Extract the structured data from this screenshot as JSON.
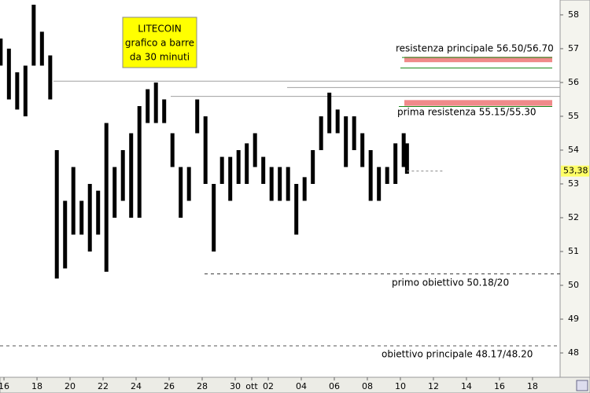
{
  "chart_data": {
    "type": "range-bar",
    "title": [
      "LITECOIN",
      "grafico a barre",
      "da 30 minuti"
    ],
    "x": [
      15.8,
      16.3,
      16.8,
      17.3,
      17.8,
      18.3,
      18.8,
      19.2,
      19.7,
      20.2,
      20.7,
      21.2,
      21.7,
      22.2,
      22.7,
      23.2,
      23.7,
      24.2,
      24.7,
      25.2,
      25.7,
      26.2,
      26.7,
      27.2,
      27.7,
      28.2,
      28.7,
      29.2,
      29.7,
      30.2,
      30.7,
      31.2,
      31.7,
      32.2,
      32.7,
      33.2,
      33.7,
      34.2,
      34.7,
      35.2,
      35.7,
      36.2,
      36.7,
      37.2,
      37.7,
      38.2,
      38.7,
      39.2,
      39.7,
      40.2,
      40.4
    ],
    "high": [
      57.3,
      57,
      56.3,
      56.5,
      58.3,
      57.5,
      56.8,
      54,
      52.5,
      53.5,
      52.5,
      53,
      52.8,
      54.8,
      53.5,
      54,
      54.5,
      55.3,
      55.8,
      56,
      55.5,
      54.5,
      53.5,
      53.5,
      55.5,
      55,
      53,
      53.8,
      53.8,
      54,
      54.2,
      54.5,
      53.8,
      53.5,
      53.5,
      53.5,
      53,
      53.2,
      54,
      55,
      55.7,
      55.2,
      55,
      55,
      54.5,
      54,
      53.5,
      53.5,
      54.2,
      54.5,
      54.2
    ],
    "low": [
      56.5,
      55.5,
      55.2,
      55,
      56.5,
      56.5,
      55.5,
      50.2,
      50.5,
      51.5,
      51.5,
      51,
      51.5,
      50.4,
      52,
      52.5,
      52,
      52,
      54.8,
      54.8,
      54.8,
      53.5,
      52,
      52.5,
      54.5,
      53,
      51,
      53,
      52.5,
      53,
      53,
      53.5,
      53,
      52.5,
      52.5,
      52.5,
      51.5,
      52.5,
      53,
      54,
      54.5,
      54.5,
      53.5,
      54,
      53.5,
      52.5,
      52.5,
      53,
      53,
      53.5,
      53.3
    ],
    "color": "#000000",
    "last": 53.38,
    "last_label": "53,38",
    "levels": [
      {
        "value": 56.04,
        "color": "#a0a0a0"
      },
      {
        "value": 55.85,
        "color": "#a0a0a0"
      },
      {
        "value": 55.59,
        "color": "#a0a0a0"
      },
      {
        "value": 56.74,
        "color": "#1a8a1a"
      },
      {
        "value": 56.43,
        "color": "#1a8a1a"
      },
      {
        "value": 55.29,
        "color": "#1a8a1a"
      },
      {
        "value": 50.34,
        "color": "#333333",
        "dashed": true
      },
      {
        "value": 48.21,
        "color": "#555555",
        "dashed": true
      }
    ],
    "bands": [
      {
        "range": [
          56.6,
          56.76
        ],
        "color": "#f08a8a"
      },
      {
        "range": [
          55.31,
          55.48
        ],
        "color": "#f08a8a"
      }
    ],
    "annotations": [
      "resistenza principale 56.50/56.70",
      "prima resistenza 55.15/55.30",
      "primo obiettivo 50.18/20",
      "obiettivo principale 48.17/48.20"
    ],
    "xlim": [
      15.76,
      49.67
    ],
    "xticks": [
      16,
      18,
      20,
      22,
      24,
      26,
      28,
      30,
      {
        "value": 31,
        "label": "ott"
      },
      {
        "value": 32,
        "label": "02"
      },
      {
        "value": 34,
        "label": "04"
      },
      {
        "value": 36,
        "label": "06"
      },
      {
        "value": 38,
        "label": "08"
      },
      {
        "value": 40,
        "label": "10"
      },
      {
        "value": 42,
        "label": "12"
      },
      {
        "value": 44,
        "label": "14"
      },
      {
        "value": 46,
        "label": "16"
      },
      {
        "value": 48,
        "label": "18"
      }
    ],
    "ylim": [
      47.28,
      58.44
    ],
    "yticks": [
      48,
      49,
      50,
      51,
      52,
      53,
      54,
      55,
      56,
      57,
      58
    ]
  }
}
